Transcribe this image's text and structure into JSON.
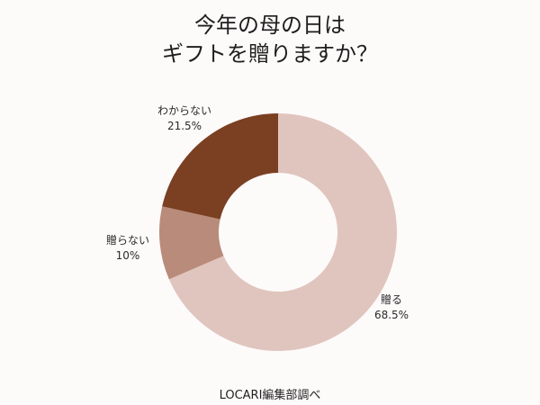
{
  "title": {
    "line1": "今年の母の日は",
    "line2": "ギフトを贈りますか？"
  },
  "labels": [
    {
      "name": "贈る",
      "value": "68.5%"
    },
    {
      "name": "贈らない",
      "value": "10%"
    },
    {
      "name": "わからない",
      "value": "21.5%"
    }
  ],
  "source": "LOCARI編集部調べ",
  "chart_data": {
    "type": "pie",
    "variant": "donut",
    "title": "今年の母の日はギフトを贈りますか？",
    "categories": [
      "贈る",
      "贈らない",
      "わからない"
    ],
    "values": [
      68.5,
      10,
      21.5
    ],
    "unit": "%",
    "colors": [
      "#e0c5be",
      "#b98b7a",
      "#7b3f22"
    ],
    "start_angle": "12 o'clock, clockwise",
    "source": "LOCARI編集部調べ"
  }
}
